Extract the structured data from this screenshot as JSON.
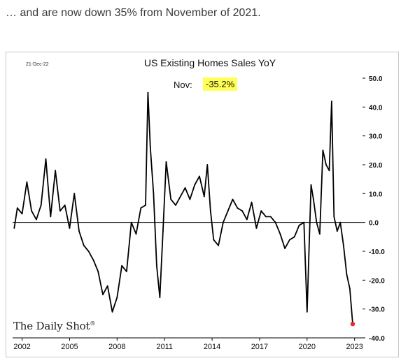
{
  "caption": "… and are now down 35% from November of 2021.",
  "datestamp": "21-Dec-22",
  "latest_label": "Nov:",
  "latest_value": "-35.2%",
  "logo_text": "The Daily Shot",
  "logo_mark": "®",
  "colors": {
    "line": "#000000",
    "endpoint": "#e8262a",
    "highlight": "#ffff55",
    "zero_line": "#000000"
  },
  "chart_data": {
    "type": "line",
    "title": "US Existing Homes Sales YoY",
    "xlabel": "",
    "ylabel": "",
    "x_ticks": [
      "2002",
      "2005",
      "2008",
      "2011",
      "2014",
      "2017",
      "2020",
      "2023"
    ],
    "y_ticks": [
      "50.0",
      "40.0",
      "30.0",
      "20.0",
      "10.0",
      "0.0",
      "-10.0",
      "-20.0",
      "-30.0",
      "-40.0"
    ],
    "xlim": [
      2001.4,
      2023.5
    ],
    "ylim": [
      -40,
      50
    ],
    "y_axis_side": "right",
    "grid": false,
    "series": [
      {
        "x": [
          2001.5,
          2001.7,
          2002.0,
          2002.3,
          2002.6,
          2002.9,
          2003.2,
          2003.5,
          2003.8,
          2004.1,
          2004.4,
          2004.7,
          2005.0,
          2005.3,
          2005.6,
          2005.9,
          2006.2,
          2006.5,
          2006.8,
          2007.1,
          2007.4,
          2007.7,
          2008.0,
          2008.3,
          2008.6,
          2008.9,
          2009.2,
          2009.5,
          2009.8,
          2009.95,
          2010.1,
          2010.3,
          2010.5,
          2010.7,
          2010.9,
          2011.1,
          2011.4,
          2011.7,
          2012.0,
          2012.3,
          2012.6,
          2012.9,
          2013.2,
          2013.5,
          2013.7,
          2013.9,
          2014.1,
          2014.4,
          2014.7,
          2015.0,
          2015.3,
          2015.6,
          2015.9,
          2016.2,
          2016.5,
          2016.8,
          2017.1,
          2017.4,
          2017.7,
          2018.0,
          2018.3,
          2018.6,
          2018.9,
          2019.2,
          2019.5,
          2019.8,
          2020.0,
          2020.25,
          2020.4,
          2020.6,
          2020.8,
          2021.0,
          2021.2,
          2021.4,
          2021.55,
          2021.7,
          2021.9,
          2022.1,
          2022.3,
          2022.5,
          2022.7,
          2022.88
        ],
        "y": [
          -2,
          5,
          3,
          14,
          4,
          1,
          6,
          22,
          2,
          18,
          4,
          6,
          -2,
          10,
          -3,
          -8,
          -10,
          -13,
          -17,
          -25,
          -22,
          -31,
          -26,
          -15,
          -17,
          0,
          -4,
          5,
          6,
          45,
          26,
          10,
          -15,
          -26,
          -3,
          21,
          8,
          6,
          9,
          12,
          8,
          13,
          16,
          9,
          20,
          4,
          -6,
          -8,
          0,
          4,
          8,
          5,
          4,
          1,
          7,
          -2,
          4,
          2,
          2,
          0,
          -4,
          -9,
          -6,
          -5,
          -1,
          0,
          -31,
          13,
          8,
          0,
          -4,
          25,
          20,
          18,
          42,
          2,
          -3,
          0,
          -8,
          -18,
          -23,
          -35.2
        ]
      }
    ]
  }
}
